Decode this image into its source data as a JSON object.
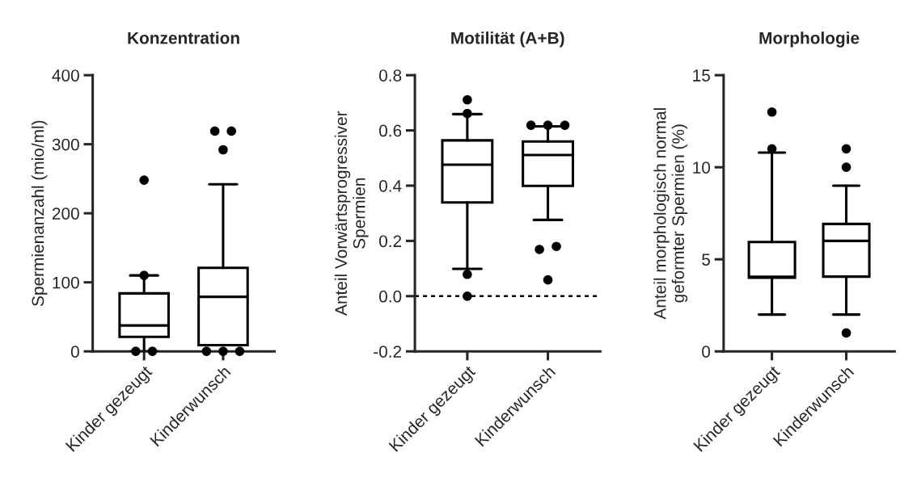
{
  "chart_data": [
    {
      "type": "box",
      "title": "Konzentration",
      "ylabel": "Spermienanzahl (mio/ml)",
      "categories": [
        "Kinder gezeugt",
        "Kinderwunsch"
      ],
      "ylim": [
        0,
        400
      ],
      "yticks": [
        0,
        100,
        200,
        300,
        400
      ],
      "boxes": [
        {
          "low": 0,
          "q1": 21,
          "median": 37.5,
          "q3": 84,
          "high": 110,
          "outliers": [
            0,
            0,
            110,
            248
          ]
        },
        {
          "low": 9,
          "q1": 9,
          "median": 79,
          "q3": 121,
          "high": 242,
          "outliers": [
            0,
            0,
            0,
            292,
            319,
            319
          ]
        }
      ]
    },
    {
      "type": "box",
      "title": "Motilität (A+B)",
      "ylabel": "Anteil Vorwärtsprogressiver\nSpermien",
      "categories": [
        "Kinder gezeugt",
        "Kinderwunsch"
      ],
      "ylim": [
        -0.2,
        0.8
      ],
      "yticks": [
        {
          "value": -0.2,
          "label": "-0.2"
        },
        {
          "value": 0,
          "label": "0.0"
        },
        0.2,
        0.4,
        0.6,
        0.8
      ],
      "boxes": [
        {
          "low": 0.099,
          "q1": 0.339,
          "median": 0.476,
          "q3": 0.564,
          "high": 0.659,
          "outliers": [
            0,
            0.079,
            0.661,
            0.711
          ]
        },
        {
          "low": 0.276,
          "q1": 0.399,
          "median": 0.511,
          "q3": 0.56,
          "high": 0.615,
          "outliers": [
            0.059,
            0.169,
            0.18,
            0.619,
            0.619,
            0.619
          ]
        }
      ],
      "ref_lines": [
        {
          "axis": "y",
          "value": 0,
          "line_style": "dashed",
          "color": "#000000"
        }
      ]
    },
    {
      "type": "box",
      "title": "Morphologie",
      "ylabel": "Anteil morphologisch normal\ngeformter Spermien (%)",
      "categories": [
        "Kinder gezeugt",
        "Kinderwunsch"
      ],
      "ylim": [
        0,
        15
      ],
      "yticks": [
        0,
        5,
        10,
        15
      ],
      "boxes": [
        {
          "low": 2,
          "q1": 4,
          "median": 4.05,
          "q3": 5.94,
          "high": 10.8,
          "outliers": [
            11,
            13
          ]
        },
        {
          "low": 2,
          "q1": 4.06,
          "median": 6,
          "q3": 6.92,
          "high": 9,
          "outliers": [
            1,
            10,
            11
          ]
        }
      ]
    }
  ]
}
